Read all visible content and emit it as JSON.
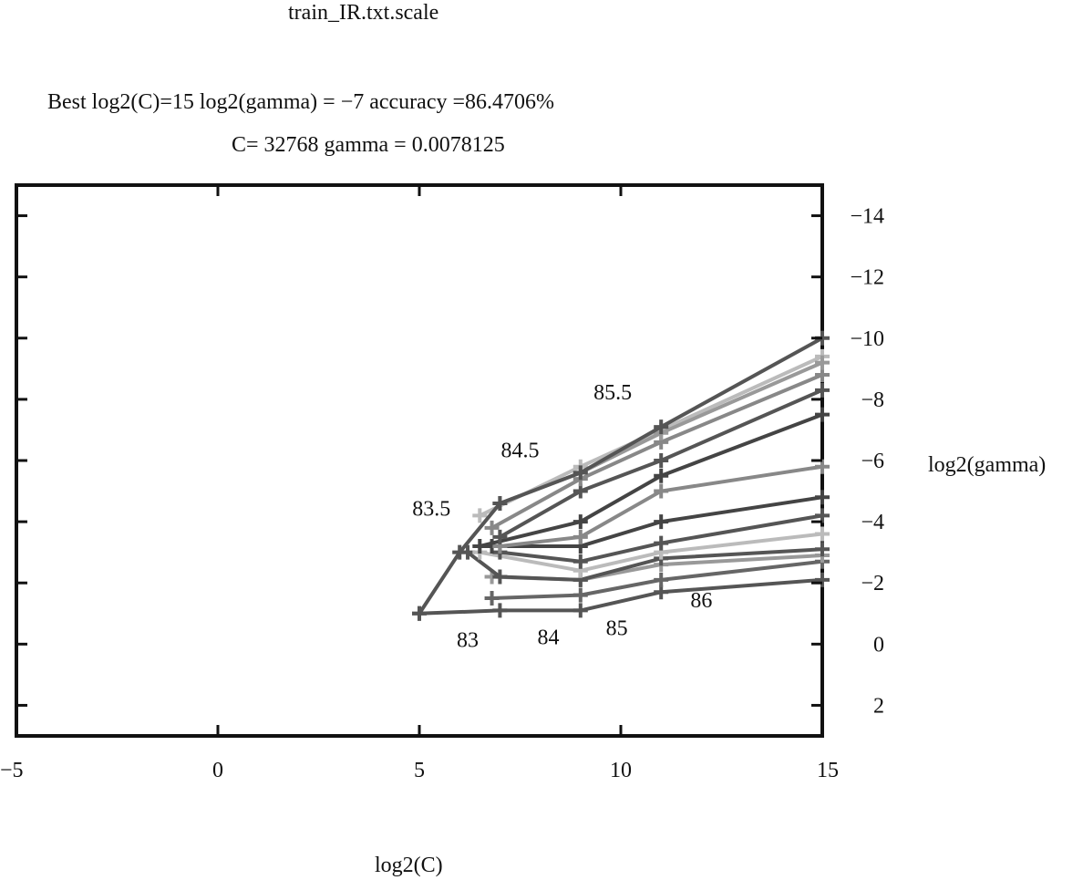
{
  "chart_data": {
    "type": "line",
    "subtype": "contour",
    "title": "train_IR.txt.scale",
    "subtitle_line1": "Best log2(C)=15   log2(gamma) = −7  accuracy =86.4706%",
    "subtitle_line2": "C= 32768  gamma = 0.0078125",
    "xlabel": "log2(C)",
    "ylabel": "log2(gamma)",
    "xlim": [
      -5,
      15
    ],
    "ylim": [
      3,
      -15
    ],
    "y_axis_side": "right",
    "y_axis_reversed": true,
    "grid": false,
    "x_ticks": [
      -5,
      0,
      5,
      10,
      15
    ],
    "x_tick_labels": [
      "−5",
      "0",
      "5",
      "10",
      "15"
    ],
    "y_ticks": [
      -14,
      -12,
      -10,
      -8,
      -6,
      -4,
      -2,
      0,
      2
    ],
    "y_tick_labels": [
      "−14",
      "−12",
      "−10",
      "−8",
      "−6",
      "−4",
      "−2",
      "0",
      "2"
    ],
    "series": [
      {
        "color": "#555555",
        "points": [
          [
            5,
            -1
          ],
          [
            7,
            -1.1
          ],
          [
            9,
            -1.1
          ],
          [
            11,
            -1.7
          ],
          [
            15,
            -2.1
          ]
        ]
      },
      {
        "color": "#666666",
        "points": [
          [
            6.8,
            -1.5
          ],
          [
            9,
            -1.6
          ],
          [
            11,
            -2.1
          ],
          [
            15,
            -2.7
          ]
        ]
      },
      {
        "color": "#999999",
        "points": [
          [
            6.8,
            -2.2
          ],
          [
            9,
            -2.1
          ],
          [
            11,
            -2.6
          ],
          [
            15,
            -2.9
          ]
        ]
      },
      {
        "color": "#555555",
        "points": [
          [
            6.2,
            -3
          ],
          [
            7,
            -2.2
          ],
          [
            9,
            -2.1
          ],
          [
            11,
            -2.8
          ],
          [
            15,
            -3.1
          ]
        ]
      },
      {
        "color": "#bbbbbb",
        "points": [
          [
            6.5,
            -3
          ],
          [
            9,
            -2.4
          ],
          [
            11,
            -3
          ],
          [
            15,
            -3.6
          ]
        ]
      },
      {
        "color": "#555555",
        "points": [
          [
            7,
            -3
          ],
          [
            9,
            -2.7
          ],
          [
            11,
            -3.3
          ],
          [
            15,
            -4.2
          ]
        ]
      },
      {
        "color": "#444444",
        "points": [
          [
            6.8,
            -3.2
          ],
          [
            9,
            -3.2
          ],
          [
            11,
            -4
          ],
          [
            15,
            -4.8
          ]
        ]
      },
      {
        "color": "#888888",
        "points": [
          [
            7,
            -3.2
          ],
          [
            9,
            -3.5
          ],
          [
            11,
            -5
          ],
          [
            15,
            -5.8
          ]
        ]
      },
      {
        "color": "#444444",
        "points": [
          [
            6.5,
            -3.2
          ],
          [
            9,
            -4
          ],
          [
            11,
            -5.5
          ],
          [
            15,
            -7.5
          ]
        ]
      },
      {
        "color": "#555555",
        "points": [
          [
            7,
            -3.5
          ],
          [
            9,
            -5
          ],
          [
            11,
            -6
          ],
          [
            15,
            -8.3
          ]
        ]
      },
      {
        "color": "#888888",
        "points": [
          [
            6.8,
            -3.8
          ],
          [
            9,
            -5.4
          ],
          [
            11,
            -6.6
          ],
          [
            15,
            -8.8
          ]
        ]
      },
      {
        "color": "#bbbbbb",
        "points": [
          [
            6.5,
            -4.2
          ],
          [
            9,
            -5.8
          ],
          [
            11,
            -7
          ],
          [
            15,
            -9.4
          ]
        ]
      },
      {
        "color": "#999999",
        "points": [
          [
            7,
            -4.6
          ],
          [
            9,
            -5.6
          ],
          [
            11,
            -6.9
          ],
          [
            15,
            -9.2
          ]
        ]
      },
      {
        "color": "#555555",
        "points": [
          [
            5,
            -1
          ],
          [
            6,
            -3
          ],
          [
            7,
            -4.6
          ],
          [
            9,
            -5.6
          ],
          [
            11,
            -7.1
          ],
          [
            15,
            -10
          ]
        ]
      }
    ],
    "contour_labels": [
      {
        "text": "83",
        "x": 6.2,
        "y": 0.1
      },
      {
        "text": "84",
        "x": 8.2,
        "y": 0.0
      },
      {
        "text": "85",
        "x": 9.9,
        "y": -0.3
      },
      {
        "text": "86",
        "x": 12.0,
        "y": -1.2
      },
      {
        "text": "83.5",
        "x": 5.3,
        "y": -4.2
      },
      {
        "text": "84.5",
        "x": 7.5,
        "y": -6.1
      },
      {
        "text": "85.5",
        "x": 9.8,
        "y": -8.0
      }
    ],
    "marker": "+"
  }
}
